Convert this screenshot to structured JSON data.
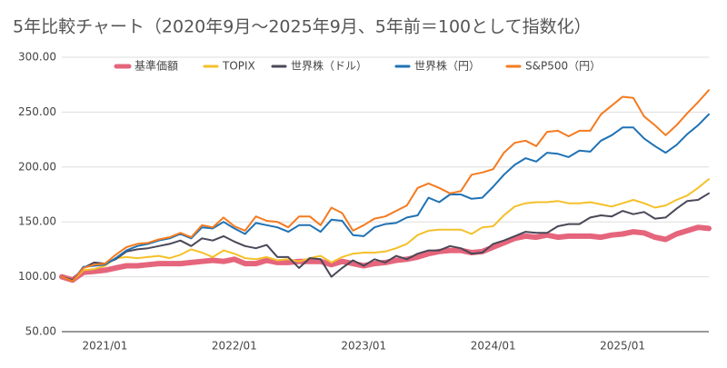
{
  "chart_data": {
    "type": "line",
    "title": "5年比較チャート（2020年9月〜2025年9月、5年前＝100として指数化）",
    "categories": [
      null,
      null,
      null,
      null,
      "2021/01",
      null,
      null,
      null,
      null,
      null,
      null,
      null,
      null,
      null,
      null,
      null,
      "2022/01",
      null,
      null,
      null,
      null,
      null,
      null,
      null,
      null,
      null,
      null,
      null,
      "2023/01",
      null,
      null,
      null,
      null,
      null,
      null,
      null,
      null,
      null,
      null,
      null,
      "2024/01",
      null,
      null,
      null,
      null,
      null,
      null,
      null,
      null,
      null,
      null,
      null,
      "2025/01",
      null,
      null,
      null,
      null,
      null,
      null,
      null,
      null
    ],
    "series": [
      {
        "name": "基準価額",
        "color": "#e5657c",
        "width": 6,
        "values": [
          100,
          97,
          104,
          105,
          106,
          108,
          110,
          110,
          111,
          112,
          112,
          112,
          113,
          114,
          115,
          114,
          116,
          112,
          112,
          115,
          113,
          113,
          114,
          114,
          114,
          111,
          114,
          112,
          110,
          112,
          113,
          115,
          116,
          118,
          121,
          123,
          124,
          124,
          122,
          123,
          127,
          131,
          135,
          137,
          136,
          138,
          136,
          137,
          137,
          137,
          136,
          138,
          139,
          141,
          140,
          136,
          134,
          139,
          142,
          145,
          144
        ]
      },
      {
        "name": "TOPIX",
        "color": "#f5c02a",
        "width": 2,
        "values": [
          100,
          96,
          106,
          107,
          110,
          117,
          118,
          117,
          118,
          119,
          117,
          120,
          125,
          122,
          118,
          124,
          121,
          117,
          116,
          118,
          115,
          116,
          114,
          117,
          119,
          113,
          118,
          121,
          122,
          122,
          123,
          126,
          130,
          138,
          142,
          143,
          143,
          143,
          139,
          145,
          146,
          156,
          164,
          167,
          168,
          168,
          169,
          167,
          167,
          168,
          166,
          164,
          167,
          170,
          167,
          163,
          165,
          170,
          174,
          181,
          189
        ]
      },
      {
        "name": "世界株（ドル）",
        "color": "#4a4858",
        "width": 2,
        "values": [
          100,
          97,
          108,
          113,
          112,
          116,
          123,
          125,
          126,
          128,
          130,
          133,
          128,
          135,
          133,
          137,
          132,
          128,
          126,
          129,
          118,
          118,
          108,
          117,
          116,
          100,
          108,
          115,
          110,
          116,
          113,
          119,
          116,
          121,
          124,
          124,
          128,
          126,
          121,
          122,
          130,
          133,
          137,
          141,
          140,
          140,
          146,
          148,
          148,
          154,
          156,
          155,
          160,
          157,
          159,
          153,
          154,
          162,
          169,
          170,
          176
        ]
      },
      {
        "name": "世界株（円）",
        "color": "#1f72b5",
        "width": 2,
        "values": [
          100,
          96,
          109,
          110,
          111,
          117,
          124,
          128,
          130,
          133,
          135,
          139,
          135,
          145,
          144,
          150,
          144,
          139,
          149,
          147,
          145,
          141,
          147,
          147,
          141,
          152,
          151,
          138,
          137,
          145,
          148,
          149,
          154,
          156,
          172,
          168,
          175,
          175,
          171,
          172,
          182,
          193,
          202,
          208,
          205,
          213,
          212,
          209,
          215,
          214,
          224,
          229,
          236,
          236,
          226,
          219,
          213,
          220,
          230,
          238,
          248
        ]
      },
      {
        "name": "S&P500（円）",
        "color": "#f47b20",
        "width": 2,
        "values": [
          100,
          96,
          108,
          111,
          112,
          120,
          127,
          130,
          131,
          134,
          136,
          140,
          136,
          147,
          145,
          154,
          146,
          142,
          155,
          151,
          150,
          145,
          155,
          155,
          147,
          163,
          158,
          142,
          147,
          153,
          155,
          160,
          165,
          181,
          185,
          181,
          176,
          178,
          193,
          195,
          198,
          213,
          222,
          224,
          219,
          232,
          233,
          228,
          233,
          233,
          248,
          256,
          264,
          263,
          246,
          238,
          229,
          238,
          249,
          259,
          270
        ]
      }
    ],
    "ylim": [
      50,
      300
    ],
    "yticks": [
      {
        "value": 50,
        "label": "50.00"
      },
      {
        "value": 100,
        "label": "100.00"
      },
      {
        "value": 150,
        "label": "150.00"
      },
      {
        "value": 200,
        "label": "200.00"
      },
      {
        "value": 250,
        "label": "250.00"
      },
      {
        "value": 300,
        "label": "300.00"
      }
    ],
    "grid": true,
    "legend": "top"
  }
}
